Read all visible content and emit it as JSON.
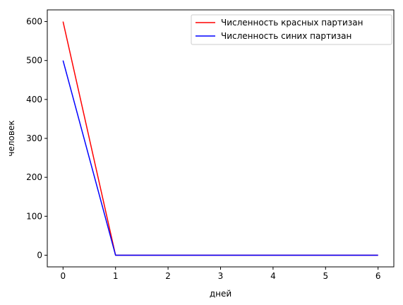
{
  "chart_data": {
    "type": "line",
    "xlabel": "дней",
    "ylabel": "человек",
    "xlim": [
      -0.3,
      6.3
    ],
    "ylim": [
      -30,
      630
    ],
    "xticks": [
      0,
      1,
      2,
      3,
      4,
      5,
      6
    ],
    "yticks": [
      0,
      100,
      200,
      300,
      400,
      500,
      600
    ],
    "grid": false,
    "legend_position": "top-right",
    "x": [
      0,
      1,
      2,
      3,
      4,
      5,
      6
    ],
    "series": [
      {
        "name": "Численность красных партизан",
        "color": "#ff0000",
        "values": [
          600,
          0,
          0,
          0,
          0,
          0,
          0
        ]
      },
      {
        "name": "Численность синих партизан",
        "color": "#0000ff",
        "values": [
          500,
          0,
          0,
          0,
          0,
          0,
          0
        ]
      }
    ]
  }
}
